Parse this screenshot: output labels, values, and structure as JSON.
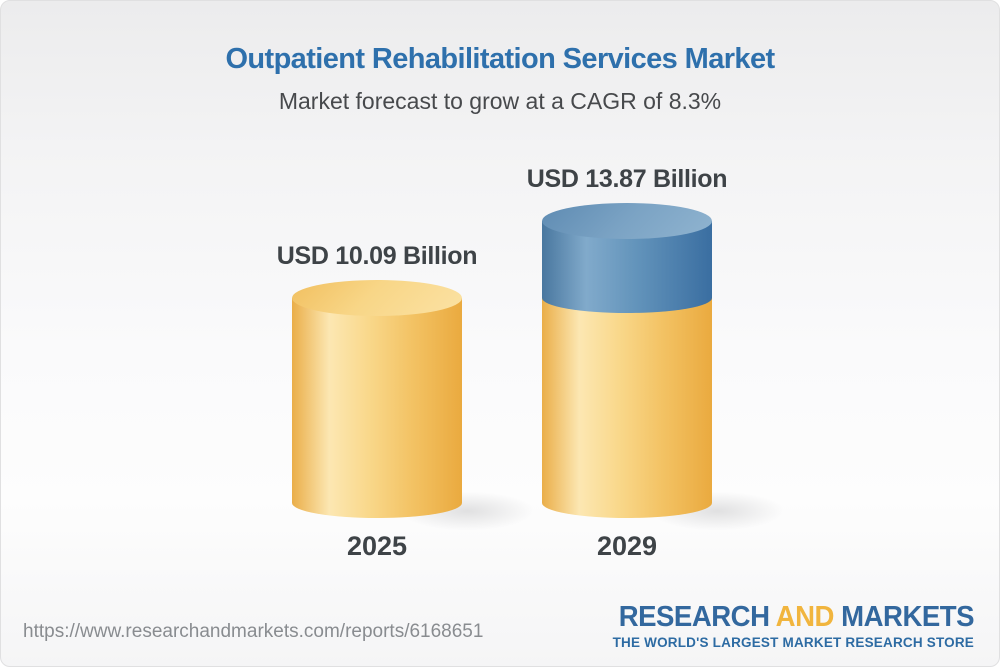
{
  "title": "Outpatient Rehabilitation Services Market",
  "subtitle": "Market forecast to grow at a CAGR of 8.3%",
  "footer": {
    "url": "https://www.researchandmarkets.com/reports/6168651",
    "logo": {
      "word1": "RESEARCH",
      "word2": "AND",
      "word3": "MARKETS",
      "tagline": "THE WORLD'S LARGEST MARKET RESEARCH STORE",
      "blue": "#33689e",
      "gold": "#f1b53e"
    }
  },
  "colors": {
    "title_blue": "#2e70ac",
    "text_dark": "#3e4347",
    "gold_body": "#f3c365",
    "gold_cap": "#f8d687",
    "blue_body": "#5d8eb6",
    "blue_cap": "#7ba3c4",
    "url_gray": "#898c90"
  },
  "chart_data": {
    "type": "bar",
    "variant": "3d-cylinder",
    "title": "Outpatient Rehabilitation Services Market",
    "subtitle": "Market forecast to grow at a CAGR of 8.3%",
    "unit": "USD Billion",
    "cagr_pct": 8.3,
    "categories": [
      "2025",
      "2029"
    ],
    "values": [
      10.09,
      13.87
    ],
    "value_labels": [
      "USD 10.09 Billion",
      "USD 13.87 Billion"
    ],
    "legend": "none",
    "grid": false,
    "bars": [
      {
        "category": "2025",
        "label": "USD 10.09 Billion",
        "total": 10.09,
        "segments": [
          {
            "name": "base-2025",
            "color": "gold",
            "value": 10.09
          }
        ]
      },
      {
        "category": "2029",
        "label": "USD 13.87 Billion",
        "total": 13.87,
        "segments": [
          {
            "name": "base-2025",
            "color": "gold",
            "value": 10.09
          },
          {
            "name": "growth-2025-2029",
            "color": "blue",
            "value": 3.78
          }
        ]
      }
    ]
  }
}
